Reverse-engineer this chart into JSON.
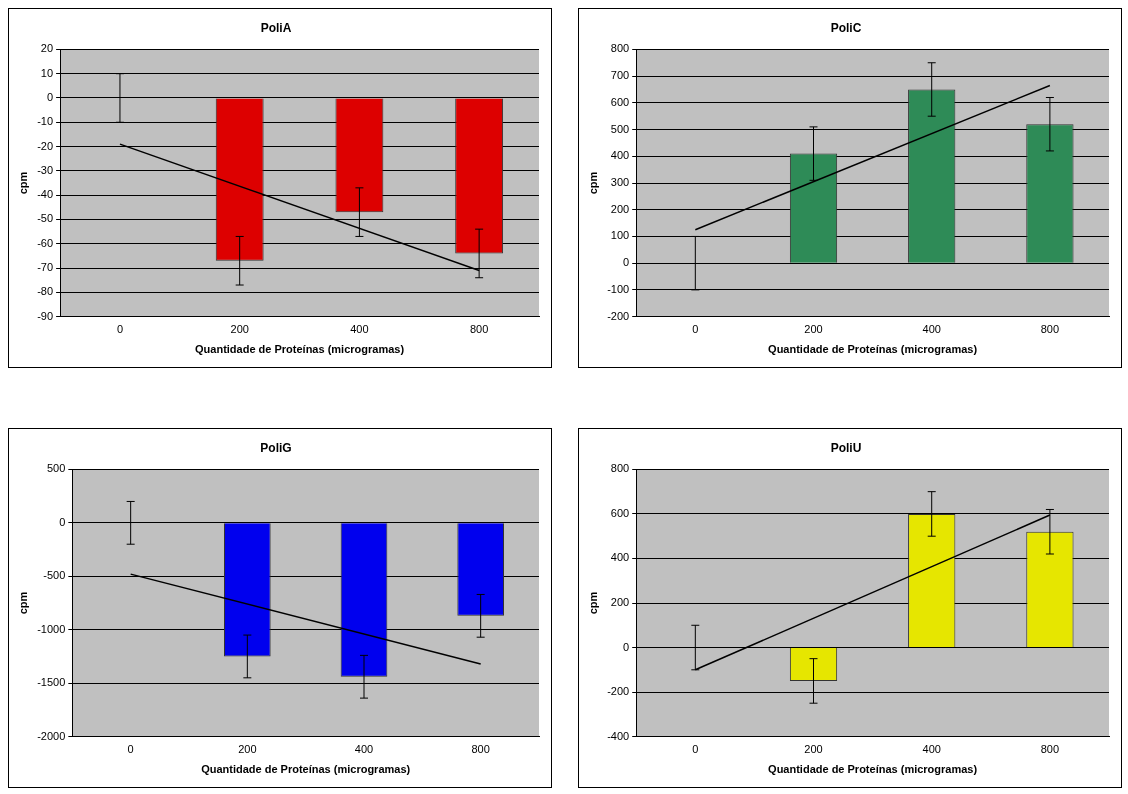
{
  "chart_data": [
    {
      "type": "bar",
      "title": "PoliA",
      "xlabel": "Quantidade de Proteínas (microgramas)",
      "ylabel": "cpm",
      "categories": [
        "0",
        "200",
        "400",
        "800"
      ],
      "series": [
        {
          "color": "#dd0000",
          "values": [
            0,
            -67,
            -47,
            -64
          ],
          "errors": [
            10,
            10,
            10,
            10
          ]
        },
        {
          "type": "line",
          "color": "#000000",
          "x": [
            "0",
            "800"
          ],
          "values": [
            -19,
            -71
          ]
        }
      ],
      "ylim": [
        -90,
        20
      ],
      "yticks": [
        -90,
        -80,
        -70,
        -60,
        -50,
        -40,
        -30,
        -20,
        -10,
        0,
        10,
        20
      ],
      "grid": "y",
      "legend": false
    },
    {
      "type": "bar",
      "title": "PoliC",
      "xlabel": "Quantidade de Proteínas (microgramas)",
      "ylabel": "cpm",
      "categories": [
        "0",
        "200",
        "400",
        "800"
      ],
      "series": [
        {
          "color": "#2e8b57",
          "values": [
            0,
            410,
            650,
            520
          ],
          "errors": [
            100,
            100,
            100,
            100
          ]
        },
        {
          "type": "line",
          "color": "#000000",
          "x": [
            "0",
            "800"
          ],
          "values": [
            125,
            665
          ]
        }
      ],
      "ylim": [
        -200,
        800
      ],
      "yticks": [
        -200,
        -100,
        0,
        100,
        200,
        300,
        400,
        500,
        600,
        700,
        800
      ],
      "grid": "y",
      "legend": false
    },
    {
      "type": "bar",
      "title": "PoliG",
      "xlabel": "Quantidade de Proteínas (microgramas)",
      "ylabel": "cpm",
      "categories": [
        "0",
        "200",
        "400",
        "800"
      ],
      "series": [
        {
          "color": "#0000ee",
          "values": [
            0,
            -1250,
            -1440,
            -870
          ],
          "errors": [
            200,
            200,
            200,
            200
          ]
        },
        {
          "type": "line",
          "color": "#000000",
          "x": [
            "0",
            "800"
          ],
          "values": [
            -480,
            -1320
          ]
        }
      ],
      "ylim": [
        -2000,
        500
      ],
      "yticks": [
        -2000,
        -1500,
        -1000,
        -500,
        0,
        500
      ],
      "grid": "y",
      "legend": false
    },
    {
      "type": "bar",
      "title": "PoliU",
      "xlabel": "Quantidade de Proteínas (microgramas)",
      "ylabel": "cpm",
      "categories": [
        "0",
        "200",
        "400",
        "800"
      ],
      "series": [
        {
          "color": "#e6e600",
          "values": [
            0,
            -150,
            600,
            520
          ],
          "errors": [
            100,
            100,
            100,
            100
          ]
        },
        {
          "type": "line",
          "color": "#000000",
          "x": [
            "0",
            "800"
          ],
          "values": [
            -100,
            595
          ]
        }
      ],
      "ylim": [
        -400,
        800
      ],
      "yticks": [
        -400,
        -200,
        0,
        200,
        400,
        600,
        800
      ],
      "grid": "y",
      "legend": false
    }
  ]
}
